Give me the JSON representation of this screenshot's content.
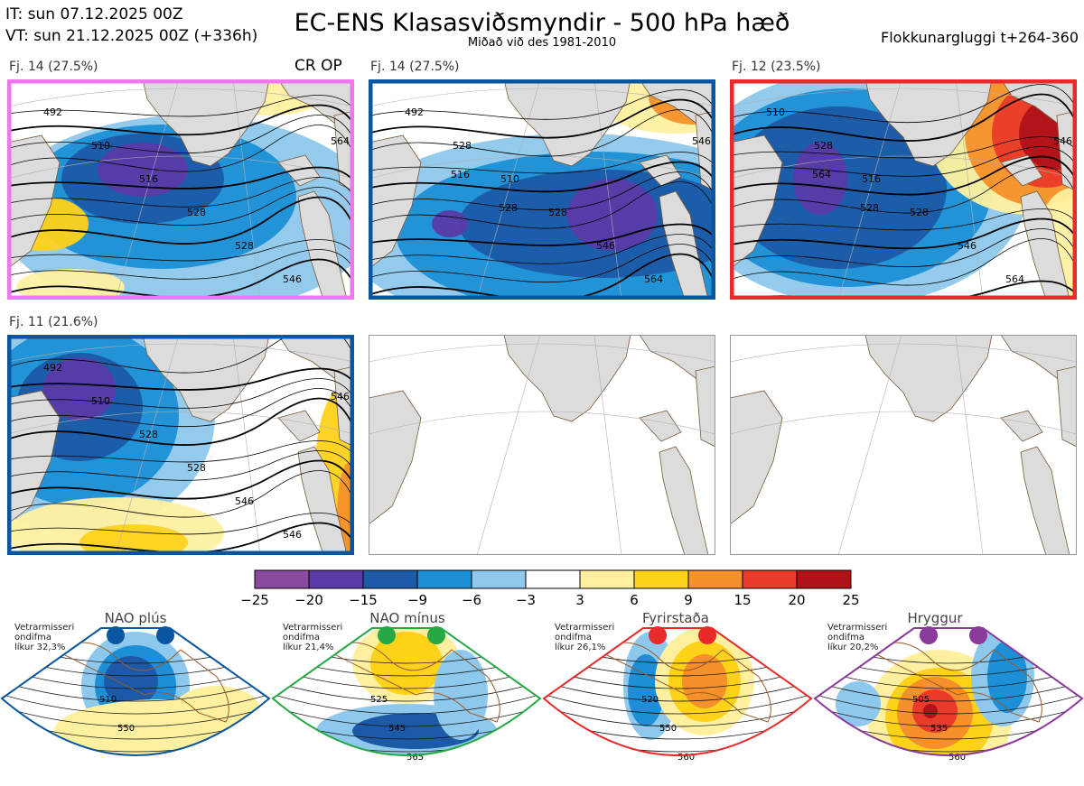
{
  "header": {
    "it_line": "IT: sun 07.12.2025 00Z",
    "vt_line": "VT: sun 21.12.2025 00Z  (+336h)",
    "title": "EC-ENS Klasasviðsmyndir - 500 hPa hæð",
    "subtitle": "Miðað við des 1981-2010",
    "window": "Flokkunargluggi t+264-360"
  },
  "crop_label": "CR OP",
  "colors": {
    "pink": "#ee77ee",
    "blue": "#0a55a0",
    "red": "#e82a2a",
    "green": "#26a844",
    "purple": "#8a3a9a"
  },
  "chart_data": [
    {
      "type": "heatmap",
      "title": "Fj. 14 (27.5%)",
      "frame_color": "#ee77ee",
      "contour_labels": [
        "492",
        "510",
        "516",
        "528",
        "528",
        "546",
        "564"
      ]
    },
    {
      "type": "heatmap",
      "title": "Fj. 14 (27.5%)",
      "frame_color": "#0a55a0",
      "contour_labels": [
        "492",
        "528",
        "510",
        "528",
        "546",
        "564",
        "546",
        "516",
        "528"
      ]
    },
    {
      "type": "heatmap",
      "title": "Fj. 12 (23.5%)",
      "frame_color": "#e82a2a",
      "contour_labels": [
        "510",
        "528",
        "516",
        "528",
        "546",
        "564",
        "546",
        "564",
        "528"
      ]
    },
    {
      "type": "heatmap",
      "title": "Fj. 11 (21.6%)",
      "frame_color": "#0a55a0",
      "contour_labels": [
        "492",
        "510",
        "528",
        "528",
        "546",
        "546",
        "546"
      ]
    },
    {
      "type": "colorbar",
      "ticks": [
        "−25",
        "−20",
        "−15",
        "−9",
        "−6",
        "−3",
        "3",
        "6",
        "9",
        "15",
        "20",
        "25"
      ],
      "colors": [
        "#8a4a9e",
        "#5a3aa6",
        "#1c5aa8",
        "#1c8fd6",
        "#8ec8ec",
        "#ffffff",
        "#fff0a0",
        "#ffd21a",
        "#f6902a",
        "#ea3a2a",
        "#b01218"
      ]
    },
    {
      "type": "heatmap",
      "title": "NAO plús",
      "info": "Vetrarmisseri\nondifma\nlíkur 32,3%",
      "frame_color": "#0a55a0",
      "contour_labels": [
        "510",
        "550"
      ]
    },
    {
      "type": "heatmap",
      "title": "NAO mínus",
      "info": "Vetrarmisseri\nondifma\nlíkur 21,4%",
      "frame_color": "#26a844",
      "contour_labels": [
        "525",
        "545",
        "565"
      ]
    },
    {
      "type": "heatmap",
      "title": "Fyrirstaða",
      "info": "Vetrarmisseri\nondifma\nlíkur 26,1%",
      "frame_color": "#e82a2a",
      "contour_labels": [
        "520",
        "550",
        "560"
      ]
    },
    {
      "type": "heatmap",
      "title": "Hryggur",
      "info": "Vetrarmisseri\nondifma\nlíkur 20,2%",
      "frame_color": "#8a3a9a",
      "contour_labels": [
        "505",
        "535",
        "560"
      ]
    }
  ]
}
